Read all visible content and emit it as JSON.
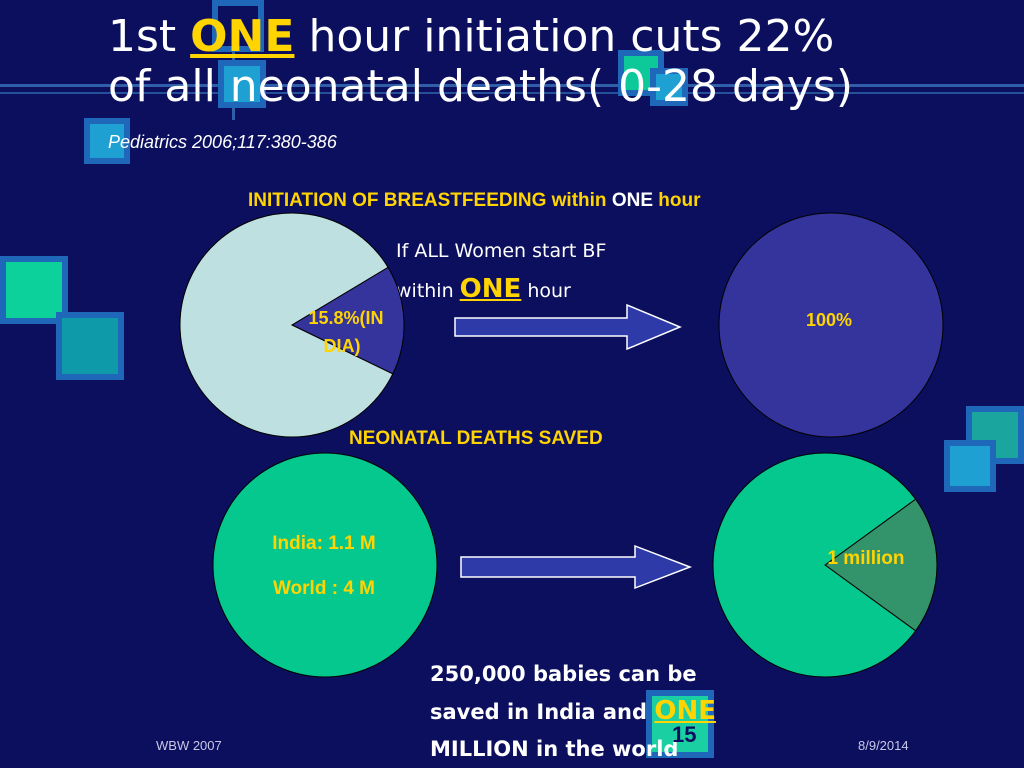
{
  "title": {
    "part1": "1st ",
    "one": "ONE",
    "part2": " hour initiation cuts 22%",
    "line2": "of all neonatal deaths( 0-28 days)"
  },
  "citation": "Pediatrics 2006;117:380-386",
  "section1": {
    "heading_a": "INITIATION OF BREASTFEEDING within ",
    "heading_b": "ONE",
    "heading_c": " hour",
    "ifall_line1": "If ALL Women start BF",
    "ifall_within": "within ",
    "ifall_one": "ONE",
    "ifall_hour": " hour",
    "india_label_line1": "15.8%(IN",
    "india_label_line2": "DIA)",
    "target_label": "100%"
  },
  "section2": {
    "heading": "NEONATAL DEATHS SAVED",
    "india_line": "India: 1.1 M",
    "world_line": "World : 4 M",
    "million_label": "1 million"
  },
  "bottom": {
    "line1": "250,000 babies can be",
    "line2a": "saved in India and ",
    "line2b": "ONE",
    "line3": "MILLION in the world"
  },
  "footer": {
    "left": "WBW 2007",
    "right": "8/9/2014",
    "page": "15"
  },
  "colors": {
    "background": "#0b0f5e",
    "accent_yellow": "#ffd400",
    "pie_light": "#bfe0e0",
    "pie_blue": "#34349c",
    "pie_green": "#05c88e",
    "pie_dark_green": "#33936a"
  },
  "chart_data": [
    {
      "type": "pie",
      "title": "",
      "slices": [
        {
          "label": "15.8%(INDIA)",
          "value": 15.8,
          "color": "#34349c"
        },
        {
          "label": "",
          "value": 84.2,
          "color": "#bfe0e0"
        }
      ]
    },
    {
      "type": "pie",
      "slices": [
        {
          "label": "100%",
          "value": 100,
          "color": "#34349c"
        }
      ]
    },
    {
      "type": "pie",
      "slices": [
        {
          "label": "India: 1.1 M / World : 4 M",
          "value": 100,
          "color": "#05c88e"
        }
      ]
    },
    {
      "type": "pie",
      "slices": [
        {
          "label": "1 million",
          "value": 20,
          "color": "#33936a"
        },
        {
          "label": "",
          "value": 80,
          "color": "#05c88e"
        }
      ]
    }
  ]
}
